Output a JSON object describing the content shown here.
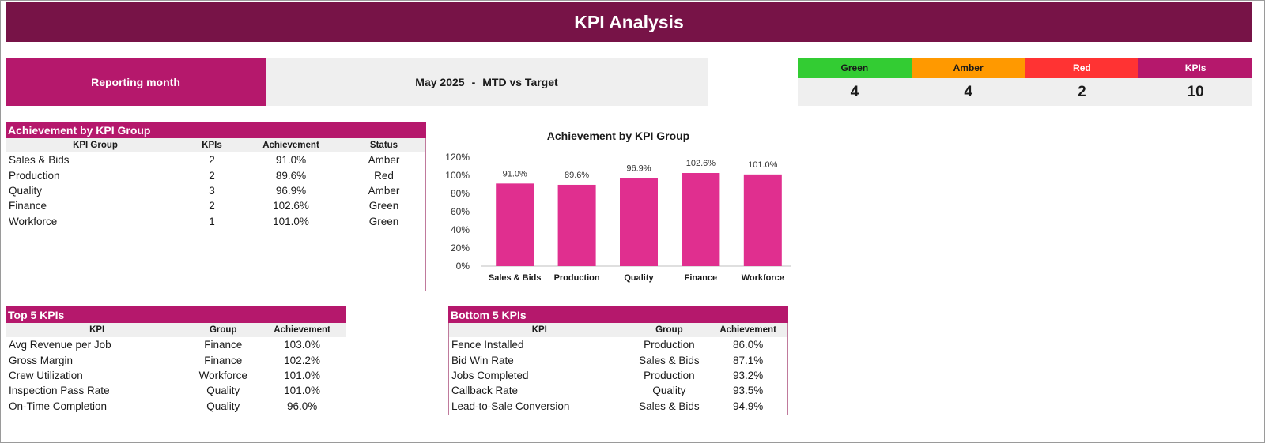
{
  "header": {
    "title": "KPI Analysis"
  },
  "reporting": {
    "label": "Reporting month",
    "month": "May 2025",
    "separator": "-",
    "comparison": "MTD vs Target"
  },
  "status_summary": [
    {
      "label": "Green",
      "count": "4",
      "color": "#33cc33"
    },
    {
      "label": "Amber",
      "count": "4",
      "color": "#ff9900"
    },
    {
      "label": "Red",
      "count": "2",
      "color": "#ff3333"
    },
    {
      "label": "KPIs",
      "count": "10",
      "color": "#b5186c"
    }
  ],
  "groups_table": {
    "title": "Achievement by KPI Group",
    "headers": [
      "KPI Group",
      "KPIs",
      "Achievement",
      "Status"
    ],
    "rows": [
      [
        "Sales & Bids",
        "2",
        "91.0%",
        "Amber"
      ],
      [
        "Production",
        "2",
        "89.6%",
        "Red"
      ],
      [
        "Quality",
        "3",
        "96.9%",
        "Amber"
      ],
      [
        "Finance",
        "2",
        "102.6%",
        "Green"
      ],
      [
        "Workforce",
        "1",
        "101.0%",
        "Green"
      ]
    ]
  },
  "top5": {
    "title": "Top 5 KPIs",
    "headers": [
      "KPI",
      "Group",
      "Achievement"
    ],
    "rows": [
      [
        "Avg Revenue per Job",
        "Finance",
        "103.0%"
      ],
      [
        "Gross Margin",
        "Finance",
        "102.2%"
      ],
      [
        "Crew Utilization",
        "Workforce",
        "101.0%"
      ],
      [
        "Inspection Pass Rate",
        "Quality",
        "101.0%"
      ],
      [
        "On-Time Completion",
        "Quality",
        "96.0%"
      ]
    ]
  },
  "bottom5": {
    "title": "Bottom 5 KPIs",
    "headers": [
      "KPI",
      "Group",
      "Achievement"
    ],
    "rows": [
      [
        "Fence Installed",
        "Production",
        "86.0%"
      ],
      [
        "Bid Win Rate",
        "Sales & Bids",
        "87.1%"
      ],
      [
        "Jobs Completed",
        "Production",
        "93.2%"
      ],
      [
        "Callback Rate",
        "Quality",
        "93.5%"
      ],
      [
        "Lead-to-Sale Conversion",
        "Sales & Bids",
        "94.9%"
      ]
    ]
  },
  "chart_data": {
    "type": "bar",
    "title": "Achievement by KPI Group",
    "categories": [
      "Sales & Bids",
      "Production",
      "Quality",
      "Finance",
      "Workforce"
    ],
    "values": [
      91.0,
      89.6,
      96.9,
      102.6,
      101.0
    ],
    "data_labels": [
      "91.0%",
      "89.6%",
      "96.9%",
      "102.6%",
      "101.0%"
    ],
    "y_ticks": [
      "0%",
      "20%",
      "40%",
      "60%",
      "80%",
      "100%",
      "120%"
    ],
    "ylim": [
      0,
      120
    ],
    "grid": false,
    "legend": "none",
    "bar_color": "#e02f8f"
  },
  "colors": {
    "header_bg": "#771347",
    "accent": "#b5186c",
    "light_fill": "#efefef"
  }
}
